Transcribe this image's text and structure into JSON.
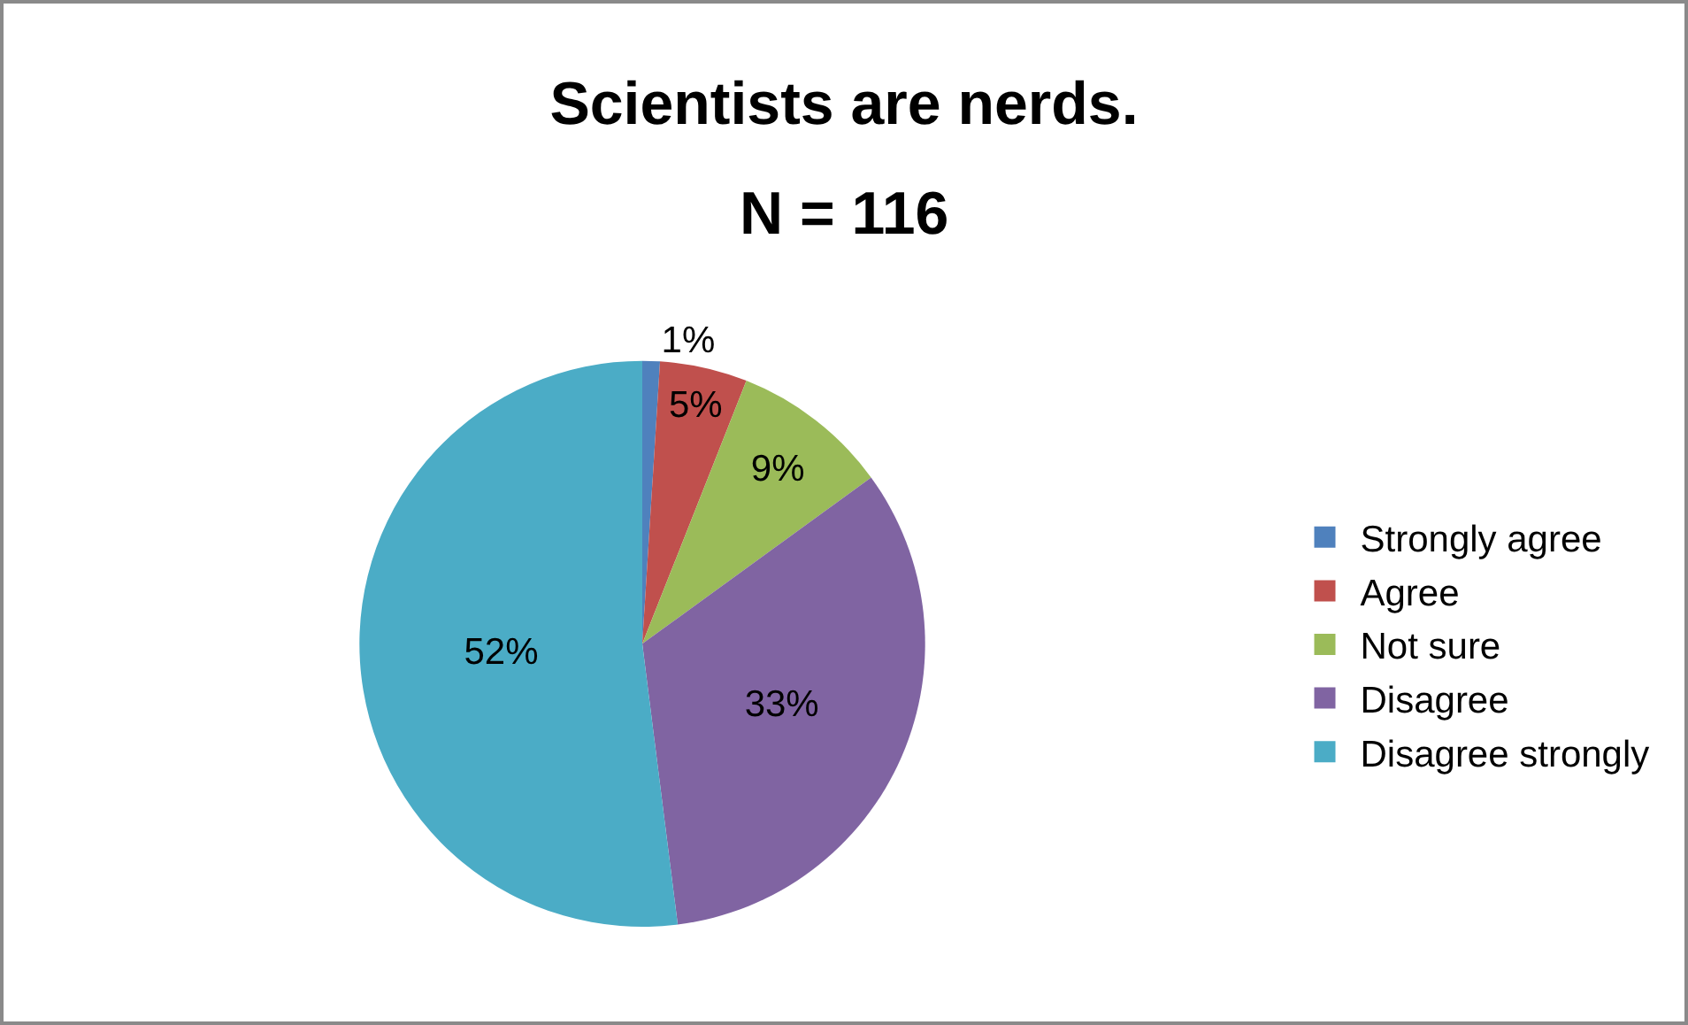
{
  "chart_data": {
    "type": "pie",
    "title": "Scientists are nerds.",
    "subtitle": "N = 116",
    "categories": [
      "Strongly agree",
      "Agree",
      "Not sure",
      "Disagree",
      "Disagree strongly"
    ],
    "values": [
      1,
      5,
      9,
      33,
      52
    ],
    "value_labels": [
      "1%",
      "5%",
      "9%",
      "33%",
      "52%"
    ],
    "colors": [
      "#4f81bd",
      "#c0504d",
      "#9bbb59",
      "#8064a2",
      "#4bacc6"
    ],
    "legend": "right"
  }
}
